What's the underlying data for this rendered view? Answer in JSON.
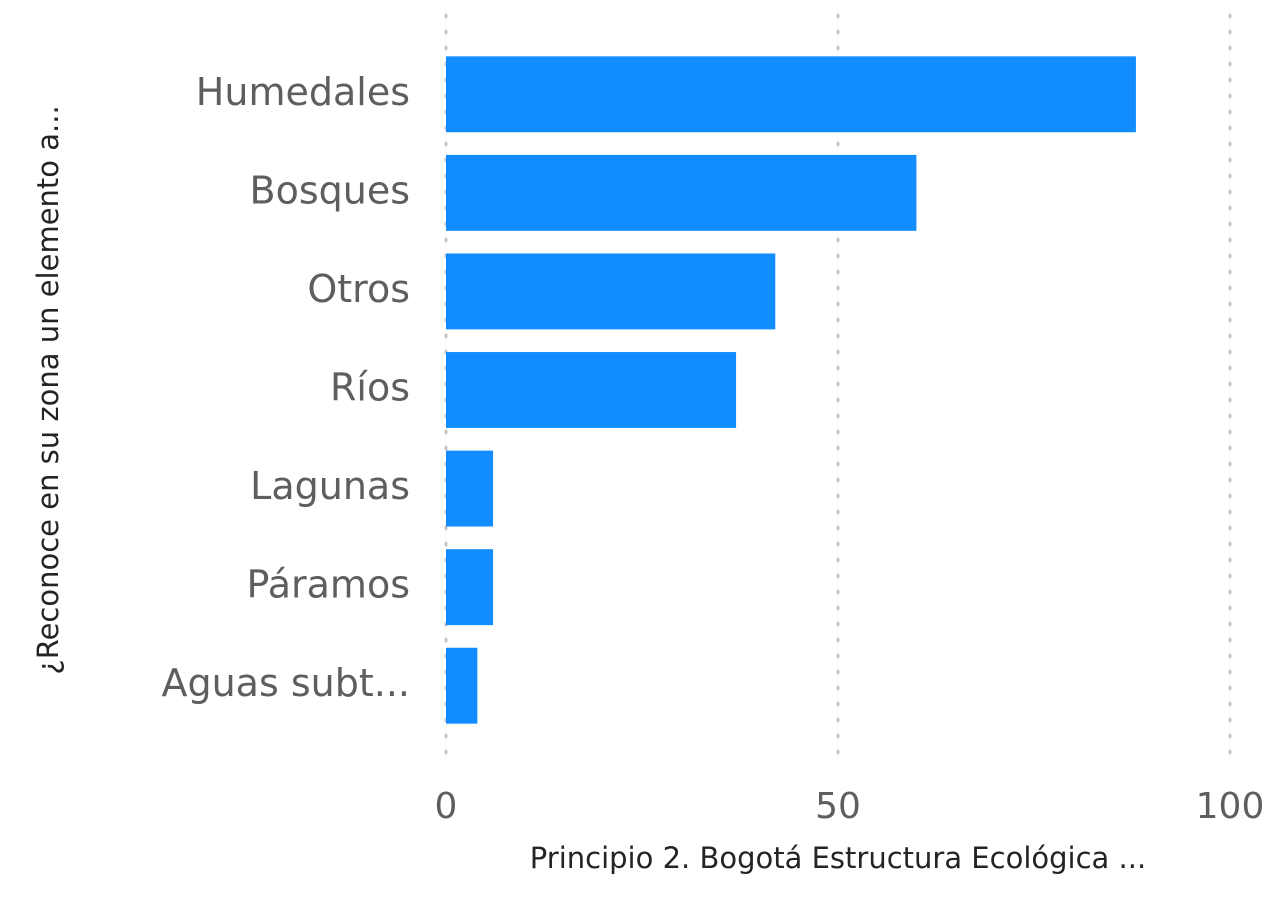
{
  "chart_data": {
    "type": "bar",
    "orientation": "horizontal",
    "x_label": "Principio 2. Bogotá Estructura Ecológica ...",
    "y_label": "¿Reconoce en su zona un elemento a...",
    "categories": [
      "Humedales",
      "Bosques",
      "Otros",
      "Ríos",
      "Lagunas",
      "Páramos",
      "Aguas subt..."
    ],
    "values": [
      88,
      60,
      42,
      37,
      6,
      6,
      4
    ],
    "color": "#118dff",
    "xlim": [
      0,
      100
    ],
    "xticks": [
      0,
      50,
      100
    ],
    "grid": true
  }
}
